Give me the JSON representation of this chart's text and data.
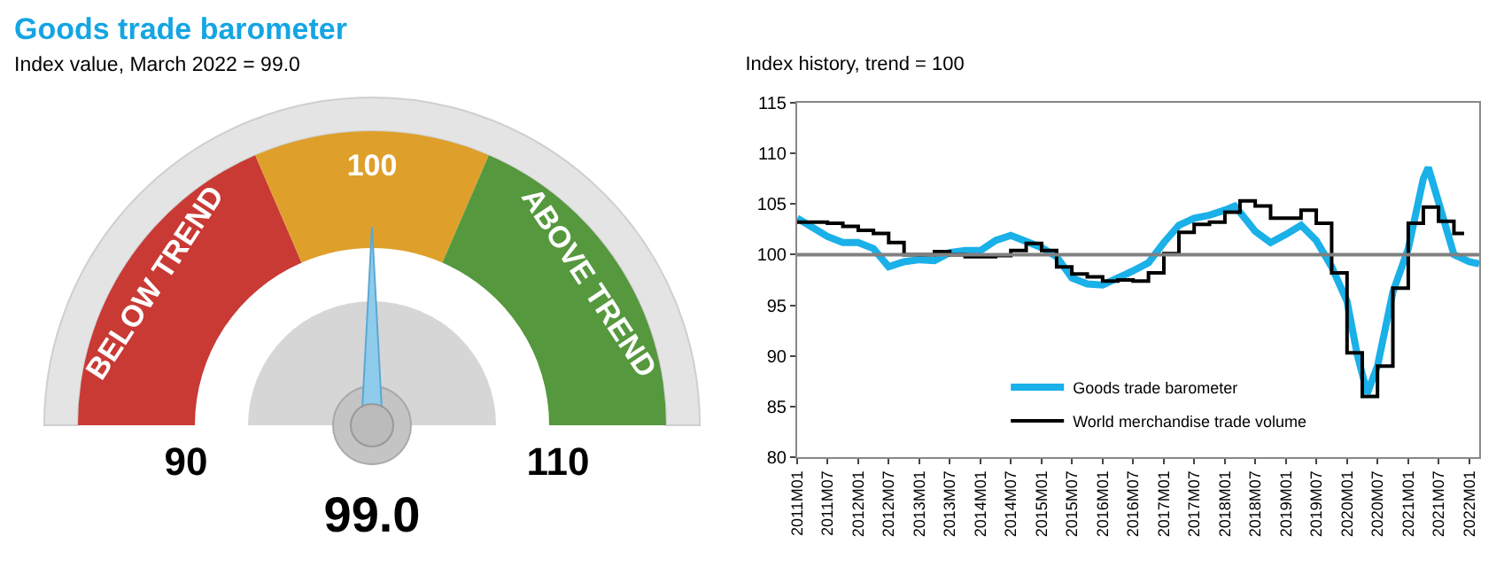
{
  "chart_data": [
    {
      "type": "donut",
      "title": "Goods trade barometer",
      "subtitle": "Index value, March 2022 = 99.0",
      "categories": [
        "BELOW TREND",
        "100",
        "ABOVE TREND"
      ],
      "values": [
        37,
        26,
        37
      ],
      "colors": [
        "#c93a35",
        "#dea02a",
        "#55983d"
      ],
      "needle": "100",
      "annotations": [
        "90",
        "110",
        "99.0"
      ]
    },
    {
      "type": "line",
      "title": "Index history, trend = 100",
      "ylim": [
        80,
        115
      ],
      "yticks": [
        80,
        85,
        90,
        95,
        100,
        105,
        110,
        115
      ],
      "xlim": [
        "2011-01",
        "2022-03"
      ],
      "xticks": [
        {
          "value": "2011-01",
          "label": "2011M01"
        },
        {
          "value": "2011-07",
          "label": "2011M07"
        },
        {
          "value": "2012-01",
          "label": "2012M01"
        },
        {
          "value": "2012-07",
          "label": "2012M07"
        },
        {
          "value": "2013-01",
          "label": "2013M01"
        },
        {
          "value": "2013-07",
          "label": "2013M07"
        },
        {
          "value": "2014-01",
          "label": "2014M01"
        },
        {
          "value": "2014-07",
          "label": "2014M07"
        },
        {
          "value": "2015-01",
          "label": "2015M01"
        },
        {
          "value": "2015-07",
          "label": "2015M07"
        },
        {
          "value": "2016-01",
          "label": "2016M01"
        },
        {
          "value": "2016-07",
          "label": "2016M07"
        },
        {
          "value": "2017-01",
          "label": "2017M01"
        },
        {
          "value": "2017-07",
          "label": "2017M07"
        },
        {
          "value": "2018-01",
          "label": "2018M01"
        },
        {
          "value": "2018-07",
          "label": "2018M07"
        },
        {
          "value": "2019-01",
          "label": "2019M01"
        },
        {
          "value": "2019-07",
          "label": "2019M07"
        },
        {
          "value": "2020-01",
          "label": "2020M01"
        },
        {
          "value": "2020-07",
          "label": "2020M07"
        },
        {
          "value": "2021-01",
          "label": "2021M01"
        },
        {
          "value": "2021-07",
          "label": "2021M07"
        },
        {
          "value": "2022-01",
          "label": "2022M01"
        }
      ],
      "legend": "bottom right",
      "marker": "none",
      "ref_lines": [
        {
          "axis": "y",
          "value": 100,
          "color": "#808080"
        }
      ],
      "series": [
        {
          "name": "Goods trade barometer",
          "color": "#1ab0e8",
          "x": [
            "2011-01",
            "2011-07",
            "2011-10",
            "2012-01",
            "2012-04",
            "2012-07",
            "2012-10",
            "2013-01",
            "2013-04",
            "2013-07",
            "2013-10",
            "2014-01",
            "2014-04",
            "2014-07",
            "2014-10",
            "2015-01",
            "2015-04",
            "2015-07",
            "2015-10",
            "2016-01",
            "2016-04",
            "2016-07",
            "2016-10",
            "2017-01",
            "2017-04",
            "2017-07",
            "2017-10",
            "2018-01",
            "2018-03",
            "2018-04",
            "2018-07",
            "2018-10",
            "2019-01",
            "2019-04",
            "2019-07",
            "2019-10",
            "2020-01",
            "2020-03",
            "2020-05",
            "2020-07",
            "2020-10",
            "2021-01",
            "2021-04",
            "2021-05",
            "2021-07",
            "2021-10",
            "2022-01",
            "2022-03"
          ],
          "values": [
            103.6,
            101.8,
            101.2,
            101.2,
            100.6,
            98.8,
            99.3,
            99.5,
            99.4,
            100.2,
            100.4,
            100.4,
            101.4,
            101.9,
            101.3,
            100.7,
            99.8,
            97.7,
            97.1,
            97.0,
            97.7,
            98.4,
            99.2,
            101.2,
            102.9,
            103.6,
            103.9,
            104.4,
            104.8,
            104.2,
            102.3,
            101.2,
            102.0,
            102.9,
            101.4,
            98.8,
            95.4,
            90.2,
            86.3,
            89.0,
            96.3,
            100.6,
            107.5,
            108.6,
            105.2,
            100.0,
            99.3,
            99.1
          ]
        },
        {
          "name": "World merchandise trade volume",
          "color": "#000000",
          "type": "step",
          "x": [
            "2011-01",
            "2011-07",
            "2011-10",
            "2012-01",
            "2012-04",
            "2012-07",
            "2012-10",
            "2013-01",
            "2013-04",
            "2013-07",
            "2013-10",
            "2014-01",
            "2014-04",
            "2014-07",
            "2014-10",
            "2015-01",
            "2015-04",
            "2015-07",
            "2015-10",
            "2016-01",
            "2016-04",
            "2016-07",
            "2016-10",
            "2017-01",
            "2017-04",
            "2017-07",
            "2017-10",
            "2018-01",
            "2018-04",
            "2018-07",
            "2018-10",
            "2019-01",
            "2019-04",
            "2019-07",
            "2019-10",
            "2020-01",
            "2020-04",
            "2020-07",
            "2020-10",
            "2021-01",
            "2021-04",
            "2021-07",
            "2021-10",
            "2021-12"
          ],
          "values": [
            103.2,
            103.1,
            102.8,
            102.4,
            102.1,
            101.2,
            100.0,
            100.0,
            100.3,
            100.0,
            99.8,
            99.8,
            99.9,
            100.4,
            101.1,
            100.4,
            98.8,
            98.1,
            97.8,
            97.4,
            97.5,
            97.4,
            98.2,
            100.1,
            102.2,
            103.0,
            103.2,
            104.2,
            105.3,
            104.8,
            103.6,
            103.6,
            104.4,
            103.1,
            98.2,
            90.3,
            86.0,
            89.0,
            96.7,
            103.1,
            104.7,
            103.3,
            102.1,
            102.1
          ]
        }
      ]
    }
  ]
}
